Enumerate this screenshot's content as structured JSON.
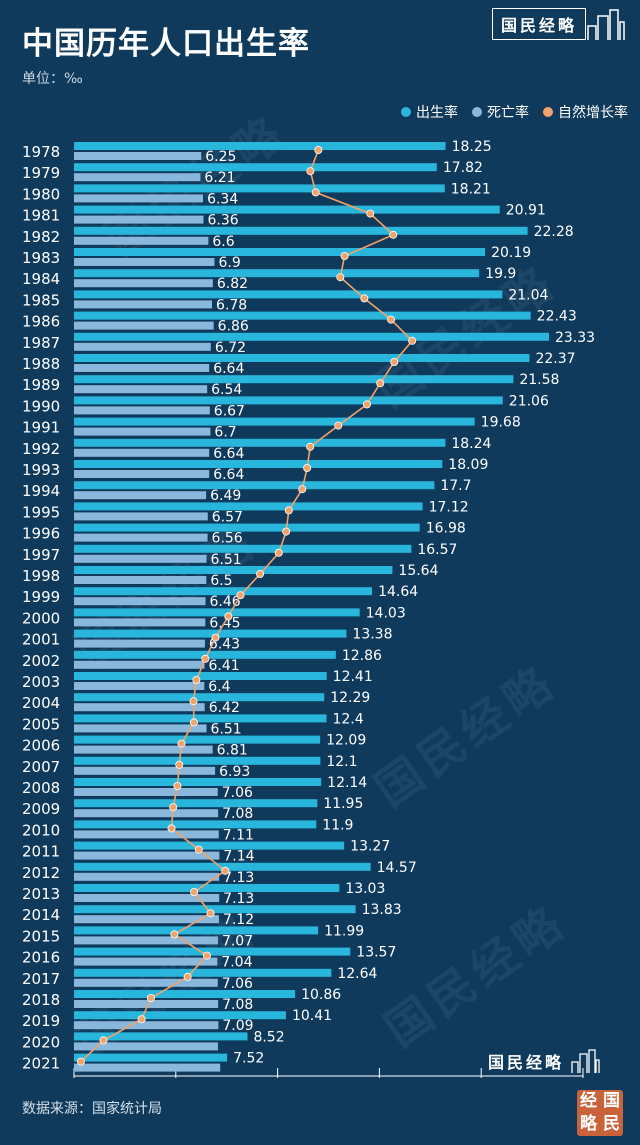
{
  "header": {
    "title": "中国历年人口出生率",
    "unit": "单位：‰",
    "brand": "国民经略"
  },
  "legend": {
    "birth": "出生率",
    "death": "死亡率",
    "natural": "自然增长率"
  },
  "footer": {
    "source": "数据来源：国家统计局",
    "brand": "国民经略",
    "seal": [
      "经",
      "国",
      "略",
      "民"
    ]
  },
  "colors": {
    "background": "#0f3a5c",
    "birth": "#29b6dd",
    "death": "#8ab8dc",
    "natural": "#f2a36a"
  },
  "chart_data": {
    "type": "bar",
    "orientation": "horizontal",
    "categories": [
      "1978",
      "1979",
      "1980",
      "1981",
      "1982",
      "1983",
      "1984",
      "1985",
      "1986",
      "1987",
      "1988",
      "1989",
      "1990",
      "1991",
      "1992",
      "1993",
      "1994",
      "1995",
      "1996",
      "1997",
      "1998",
      "1999",
      "2000",
      "2001",
      "2002",
      "2003",
      "2004",
      "2005",
      "2006",
      "2007",
      "2008",
      "2009",
      "2010",
      "2011",
      "2012",
      "2013",
      "2014",
      "2015",
      "2016",
      "2017",
      "2018",
      "2019",
      "2020",
      "2021"
    ],
    "series": [
      {
        "name": "出生率",
        "type": "bar",
        "values": [
          18.25,
          17.82,
          18.21,
          20.91,
          22.28,
          20.19,
          19.9,
          21.04,
          22.43,
          23.33,
          22.37,
          21.58,
          21.06,
          19.68,
          18.24,
          18.09,
          17.7,
          17.12,
          16.98,
          16.57,
          15.64,
          14.64,
          14.03,
          13.38,
          12.86,
          12.41,
          12.29,
          12.4,
          12.09,
          12.1,
          12.14,
          11.95,
          11.9,
          13.27,
          14.57,
          13.03,
          13.83,
          11.99,
          13.57,
          12.64,
          10.86,
          10.41,
          8.52,
          7.52
        ]
      },
      {
        "name": "死亡率",
        "type": "bar",
        "values": [
          6.25,
          6.21,
          6.34,
          6.36,
          6.6,
          6.9,
          6.82,
          6.78,
          6.86,
          6.72,
          6.64,
          6.54,
          6.67,
          6.7,
          6.64,
          6.64,
          6.49,
          6.57,
          6.56,
          6.51,
          6.5,
          6.46,
          6.45,
          6.43,
          6.41,
          6.4,
          6.42,
          6.51,
          6.81,
          6.93,
          7.06,
          7.08,
          7.11,
          7.14,
          7.13,
          7.13,
          7.12,
          7.07,
          7.04,
          7.06,
          7.08,
          7.09,
          7.07,
          7.18
        ]
      },
      {
        "name": "自然增长率",
        "type": "line",
        "values": [
          12,
          11.61,
          11.87,
          14.55,
          15.68,
          13.29,
          13.08,
          14.26,
          15.57,
          16.61,
          15.73,
          15.04,
          14.39,
          12.98,
          11.6,
          11.45,
          11.21,
          10.55,
          10.42,
          10.06,
          9.14,
          8.18,
          7.58,
          6.95,
          6.45,
          6.01,
          5.87,
          5.89,
          5.28,
          5.17,
          5.08,
          4.87,
          4.79,
          6.13,
          7.43,
          5.9,
          6.71,
          4.93,
          6.53,
          5.58,
          3.78,
          3.32,
          1.45,
          0.34
        ]
      }
    ],
    "xlim": [
      0,
      25
    ],
    "labeled": {
      "birth_last_index": 43,
      "death_labels_hidden": [
        42,
        43
      ]
    },
    "legend_position": "top-right"
  }
}
